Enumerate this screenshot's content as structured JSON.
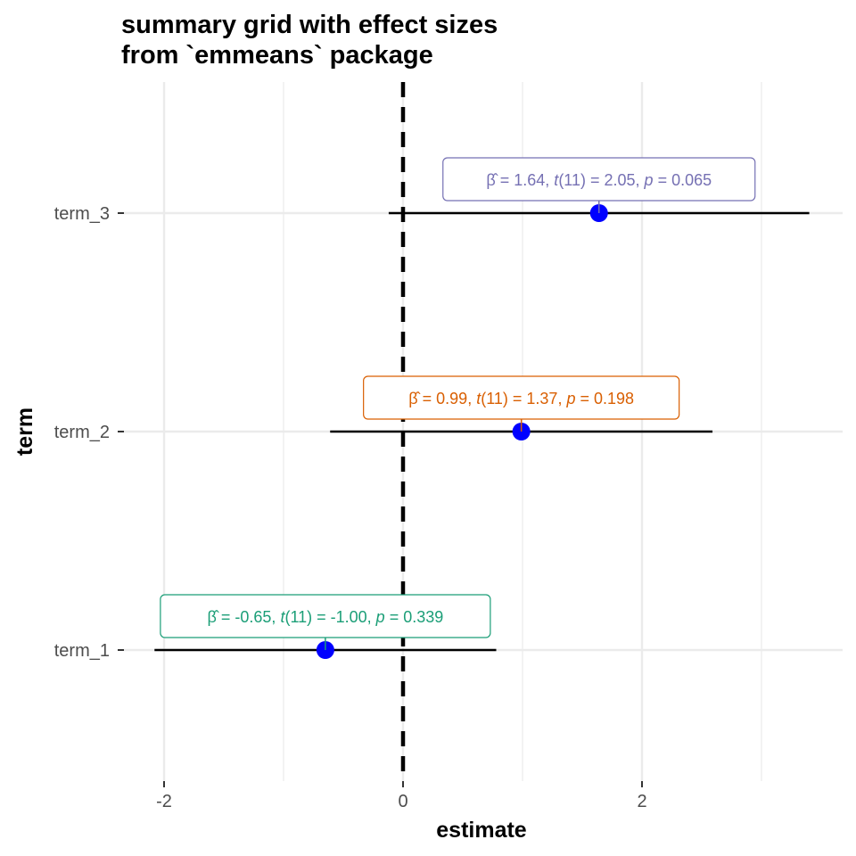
{
  "chart_data": {
    "type": "scatter",
    "title": [
      "summary grid with effect sizes",
      "from `emmeans` package"
    ],
    "xlabel": "estimate",
    "ylabel": "term",
    "xlim": [
      -2.5,
      3.7
    ],
    "x_ticks": [
      -2,
      0,
      2
    ],
    "x_tick_labels": [
      "-2",
      "0",
      "2"
    ],
    "x_minor_ticks": [
      -1,
      1,
      3
    ],
    "grid": true,
    "reference_line": {
      "x": 0,
      "style": "dashed",
      "color": "#000000"
    },
    "point_color": "#0000ff",
    "categories": [
      "term_1",
      "term_2",
      "term_3"
    ],
    "points": [
      {
        "term": "term_1",
        "estimate": -0.65,
        "conf_low": -2.08,
        "conf_high": 0.78,
        "color": "#1b9e77",
        "label": {
          "beta": "-0.65",
          "df": "11",
          "t": "-1.00",
          "p": "0.339"
        }
      },
      {
        "term": "term_2",
        "estimate": 0.99,
        "conf_low": -0.61,
        "conf_high": 2.59,
        "color": "#d95f02",
        "label": {
          "beta": "0.99",
          "df": "11",
          "t": "1.37",
          "p": "0.198"
        }
      },
      {
        "term": "term_3",
        "estimate": 1.64,
        "conf_low": -0.12,
        "conf_high": 3.4,
        "color": "#7570b3",
        "label": {
          "beta": "1.64",
          "df": "11",
          "t": "2.05",
          "p": "0.065"
        }
      }
    ]
  }
}
